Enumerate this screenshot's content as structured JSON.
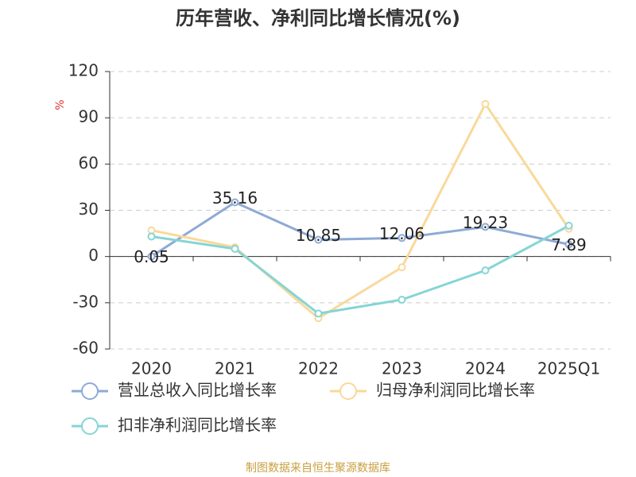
{
  "chart_data": {
    "type": "line",
    "title": "历年营收、净利同比增长情况(%)",
    "y_label": "%",
    "source": "制图数据来自恒生聚源数据库",
    "categories": [
      "2020",
      "2021",
      "2022",
      "2023",
      "2024",
      "2025Q1"
    ],
    "series": [
      {
        "name": "营业总收入同比增长率",
        "color": "#8eaad6",
        "values": [
          0.05,
          35.16,
          10.85,
          12.06,
          19.23,
          7.89
        ],
        "show_labels": true
      },
      {
        "name": "归母净利润同比增长率",
        "color": "#f9d99a",
        "values": [
          17,
          6,
          -40,
          -7,
          99,
          18
        ]
      },
      {
        "name": "扣非净利润同比增长率",
        "color": "#86d5d5",
        "values": [
          13,
          5,
          -37,
          -28,
          -9,
          20
        ]
      }
    ],
    "ylim": [
      -60,
      120
    ],
    "yticks": [
      -60,
      -30,
      0,
      30,
      60,
      90,
      120
    ],
    "grid": true
  }
}
